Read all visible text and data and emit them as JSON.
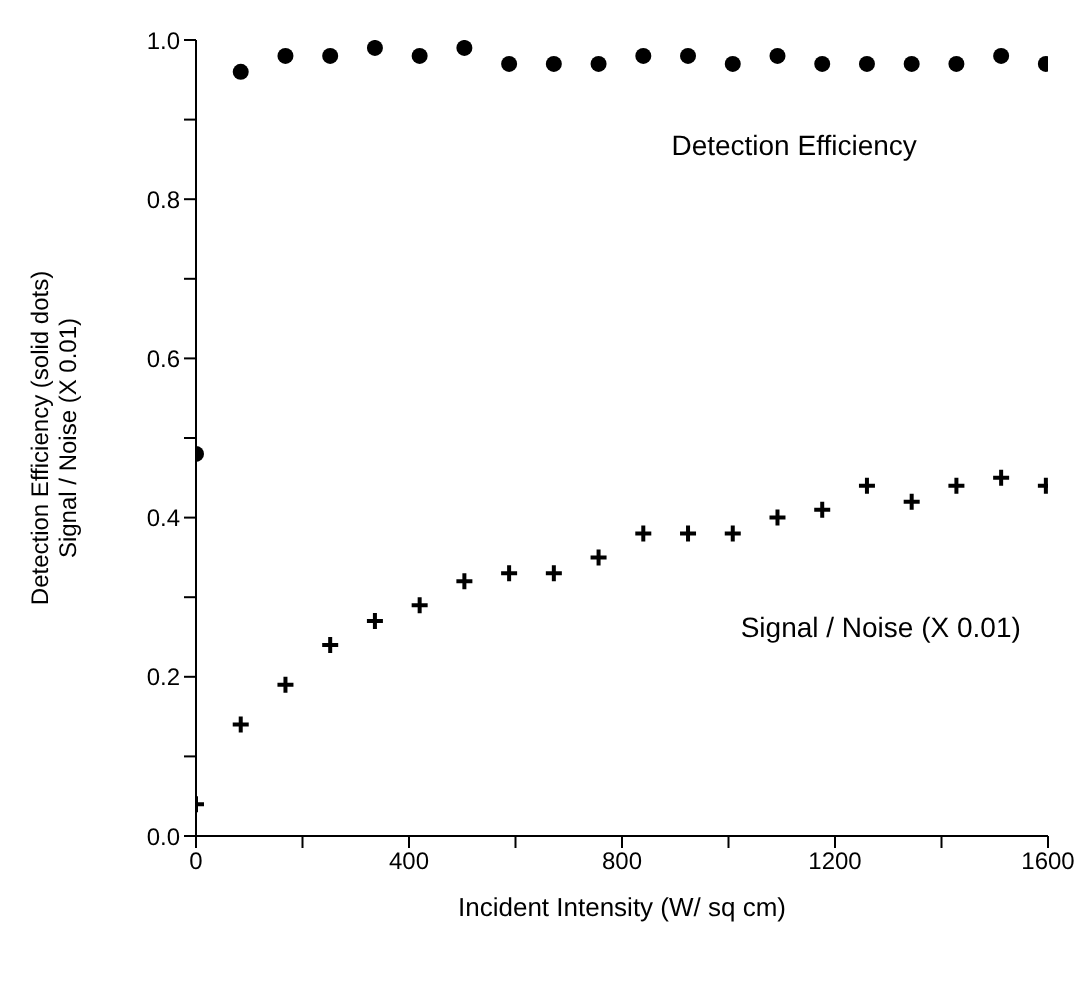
{
  "chart_data": {
    "type": "scatter",
    "xlabel": "Incident Intensity (W/ sq cm)",
    "ylabel": "Detection Efficiency (solid dots)\nSignal / Noise (X 0.01)",
    "xlim": [
      0,
      1600
    ],
    "ylim": [
      0,
      1.0
    ],
    "xticks": [
      0,
      {
        "value": 200,
        "label": null
      },
      400,
      {
        "value": 600,
        "label": null
      },
      800,
      {
        "value": 1000,
        "label": null
      },
      1200,
      {
        "value": 1400,
        "label": null
      },
      1600
    ],
    "yticks": [
      {
        "value": 0,
        "label": "0.0"
      },
      {
        "value": 0.1,
        "label": null
      },
      0.2,
      {
        "value": 0.3,
        "label": null
      },
      0.4,
      {
        "value": 0.5,
        "label": null
      },
      0.6,
      {
        "value": 0.7,
        "label": null
      },
      0.8,
      {
        "value": 0.9,
        "label": null
      },
      {
        "value": 1.0,
        "label": "1.0"
      }
    ],
    "grid": false,
    "series": [
      {
        "name": "Detection Efficiency",
        "color": "#000000",
        "marker": "circle",
        "x": [
          0,
          84,
          168,
          252,
          336,
          420,
          504,
          588,
          672,
          756,
          840,
          924,
          1008,
          1092,
          1176,
          1260,
          1344,
          1428,
          1512,
          1596
        ],
        "values": [
          0.48,
          0.96,
          0.98,
          0.98,
          0.99,
          0.98,
          0.99,
          0.97,
          0.97,
          0.97,
          0.98,
          0.98,
          0.97,
          0.98,
          0.97,
          0.97,
          0.97,
          0.97,
          0.98,
          0.97
        ]
      },
      {
        "name": "Signal / Noise (X 0.01)",
        "color": "#000000",
        "marker": "cross",
        "x": [
          0,
          84,
          168,
          252,
          336,
          420,
          504,
          588,
          672,
          756,
          840,
          924,
          1008,
          1092,
          1176,
          1260,
          1344,
          1428,
          1512,
          1596
        ],
        "values": [
          0.04,
          0.14,
          0.19,
          0.24,
          0.27,
          0.29,
          0.32,
          0.33,
          0.33,
          0.35,
          0.38,
          0.38,
          0.38,
          0.4,
          0.41,
          0.44,
          0.42,
          0.44,
          0.45,
          0.44
        ]
      }
    ]
  }
}
